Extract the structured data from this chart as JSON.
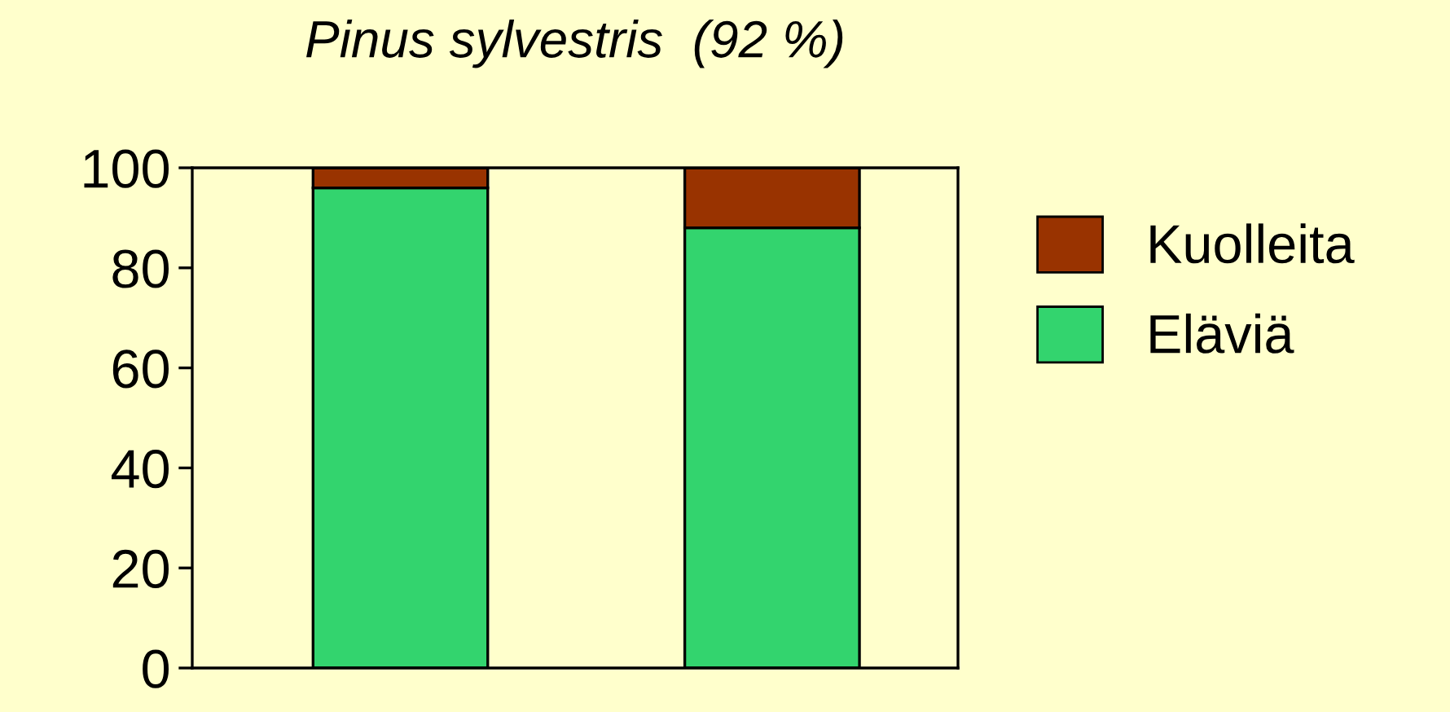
{
  "chart_data": {
    "type": "bar",
    "title": "Pinus sylvestris  (92 %)",
    "categories": [
      null,
      null
    ],
    "stacked": true,
    "series": [
      {
        "name": "Eläviä",
        "color": "#33d46e",
        "values": [
          96,
          88
        ]
      },
      {
        "name": "Kuolleita",
        "color": "#993300",
        "values": [
          4,
          12
        ]
      }
    ],
    "ylim": [
      0,
      100
    ],
    "yticks": [
      0,
      20,
      40,
      60,
      80,
      100
    ],
    "grid": false,
    "legend": "right"
  }
}
